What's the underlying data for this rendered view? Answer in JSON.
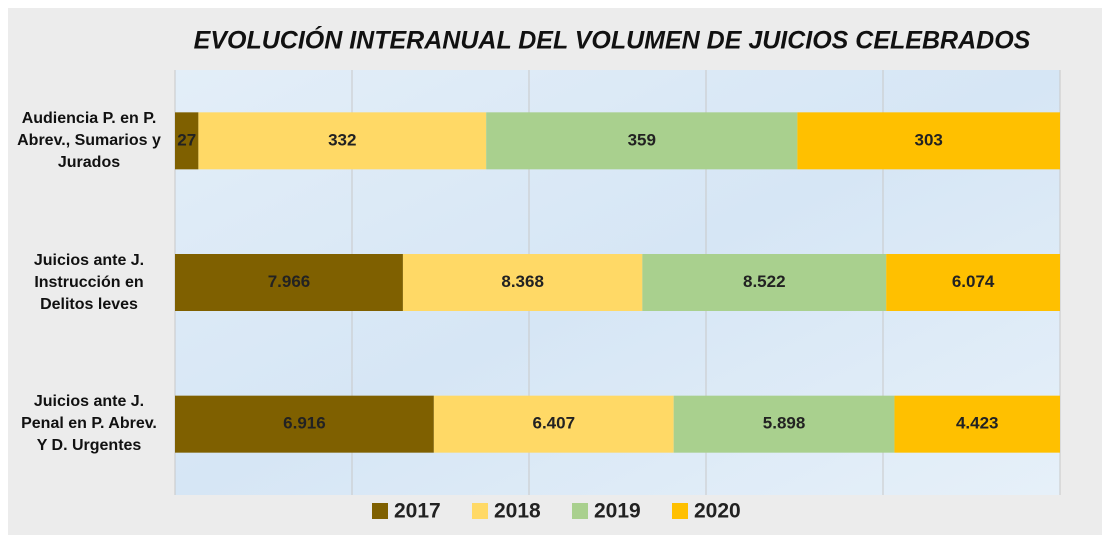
{
  "chart_data": {
    "type": "bar",
    "orientation": "horizontal",
    "stacked": "percent",
    "title": "EVOLUCIÓN INTERANUAL  DEL VOLUMEN DE JUICIOS CELEBRADOS",
    "categories": [
      "Audiencia P. en P. Abrev., Sumarios y Jurados",
      "Juicios ante J. Instrucción en Delitos leves",
      "Juicios ante J. Penal en P. Abrev. Y D. Urgentes"
    ],
    "series": [
      {
        "name": "2017",
        "color": "#7f6000",
        "values": [
          27,
          7966,
          6916
        ],
        "value_labels": [
          "27",
          "7.966",
          "6.916"
        ]
      },
      {
        "name": "2018",
        "color": "#ffd966",
        "values": [
          332,
          8368,
          6407
        ],
        "value_labels": [
          "332",
          "8.368",
          "6.407"
        ]
      },
      {
        "name": "2019",
        "color": "#a9d08e",
        "values": [
          359,
          8522,
          5898
        ],
        "value_labels": [
          "359",
          "8.522",
          "5.898"
        ]
      },
      {
        "name": "2020",
        "color": "#ffc000",
        "values": [
          303,
          6074,
          4423
        ],
        "value_labels": [
          "303",
          "6.074",
          "4.423"
        ]
      }
    ],
    "xlim": [
      0,
      100
    ],
    "xticks": [
      0,
      20,
      40,
      60,
      80,
      100
    ],
    "grid": true,
    "legend": "bottom"
  }
}
